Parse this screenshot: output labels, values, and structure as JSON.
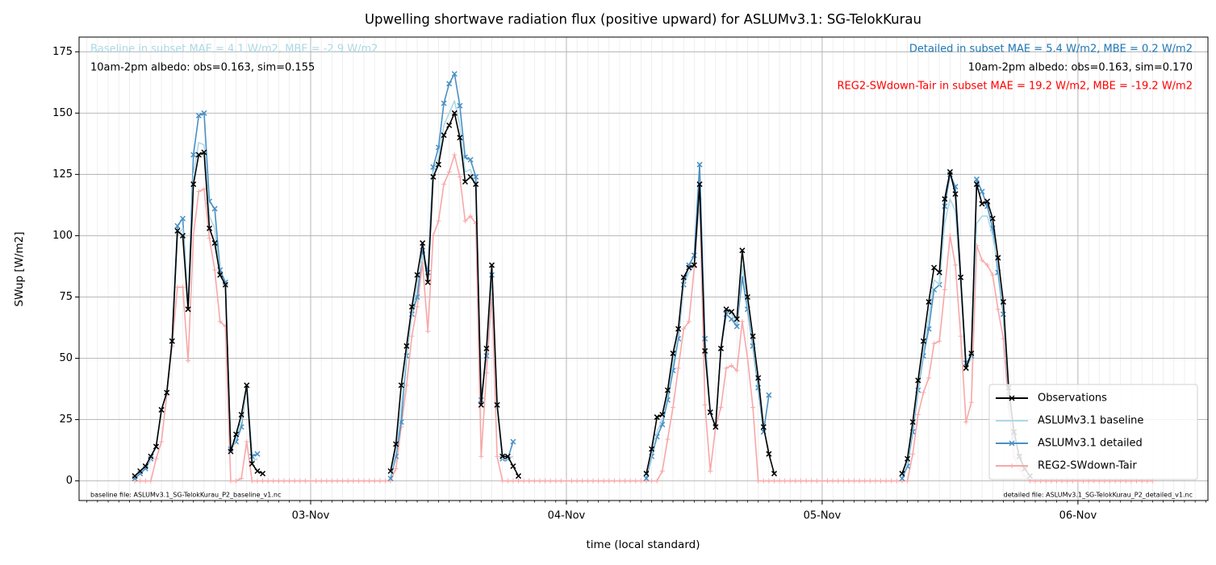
{
  "chart_data": {
    "type": "line",
    "title": "Upwelling shortwave radiation flux (positive upward) for ASLUMv3.1: SG-TelokKurau",
    "x_label": "time (local standard)",
    "y_label": "SWup [W/m2]",
    "xlim": [
      2.27,
      108.2
    ],
    "ylim": [
      -8,
      181
    ],
    "xticks": [
      {
        "value": 24,
        "label": "03-Nov"
      },
      {
        "value": 48,
        "label": "04-Nov"
      },
      {
        "value": 72,
        "label": "05-Nov"
      },
      {
        "value": 96,
        "label": "06-Nov"
      }
    ],
    "yticks": [
      0,
      25,
      50,
      75,
      100,
      125,
      150,
      175
    ],
    "grid": true,
    "legend": "lower right",
    "annotations": [
      {
        "text": "Baseline in subset MAE = 4.1 W/m2, MBE = -2.9 W/m2",
        "color": "#add8e6"
      },
      {
        "text": "10am-2pm albedo: obs=0.163, sim=0.155",
        "color": "#000000"
      },
      {
        "text": "Detailed in subset MAE = 5.4 W/m2, MBE = 0.2 W/m2",
        "color": "#1f77b4"
      },
      {
        "text": "10am-2pm albedo: obs=0.163, sim=0.170",
        "color": "#000000"
      },
      {
        "text": "REG2-SWdown-Tair in subset MAE = 19.2 W/m2, MBE = -19.2 W/m2",
        "color": "#ff0000"
      },
      {
        "text": "baseline file: ASLUMv3.1_SG-TelokKurau_P2_baseline_v1.nc",
        "color": "#000000"
      },
      {
        "text": "detailed file: ASLUMv3.1_SG-TelokKurau_P2_detailed_v1.nc",
        "color": "#000000"
      }
    ],
    "x": [
      7.5,
      8,
      8.5,
      9,
      9.5,
      10,
      10.5,
      11,
      11.5,
      12,
      12.5,
      13,
      13.5,
      14,
      14.5,
      15,
      15.5,
      16,
      16.5,
      17,
      17.5,
      18,
      18.5,
      19,
      19.5,
      20,
      20.5,
      21,
      21.5,
      22,
      22.5,
      23,
      23.5,
      24,
      24.5,
      25,
      25.5,
      26,
      26.5,
      27,
      27.5,
      28,
      28.5,
      29,
      29.5,
      30,
      30.5,
      31,
      31.5,
      32,
      32.5,
      33,
      33.5,
      34,
      34.5,
      35,
      35.5,
      36,
      36.5,
      37,
      37.5,
      38,
      38.5,
      39,
      39.5,
      40,
      40.5,
      41,
      41.5,
      42,
      42.5,
      43,
      43.5,
      44,
      44.5,
      45,
      45.5,
      46,
      46.5,
      47,
      47.5,
      48,
      48.5,
      49,
      49.5,
      50,
      50.5,
      51,
      51.5,
      52,
      52.5,
      53,
      53.5,
      54,
      54.5,
      55,
      55.5,
      56,
      56.5,
      57,
      57.5,
      58,
      58.5,
      59,
      59.5,
      60,
      60.5,
      61,
      61.5,
      62,
      62.5,
      63,
      63.5,
      64,
      64.5,
      65,
      65.5,
      66,
      66.5,
      67,
      67.5,
      68,
      68.5,
      69,
      69.5,
      70,
      70.5,
      71,
      71.5,
      72,
      72.5,
      73,
      73.5,
      74,
      74.5,
      75,
      75.5,
      76,
      76.5,
      77,
      77.5,
      78,
      78.5,
      79,
      79.5,
      80,
      80.5,
      81,
      81.5,
      82,
      82.5,
      83,
      83.5,
      84,
      84.5,
      85,
      85.5,
      86,
      86.5,
      87,
      87.5,
      88,
      88.5,
      89,
      89.5,
      90,
      90.5,
      91,
      91.5,
      92,
      92.5,
      93,
      93.5,
      94,
      94.5,
      95,
      95.5,
      96,
      96.5,
      97,
      97.5,
      98,
      98.5,
      99,
      99.5,
      100,
      100.5,
      101,
      101.5,
      102,
      102.5,
      103
    ],
    "series": [
      {
        "name": "Observations",
        "color": "#000000",
        "marker": "x",
        "values": [
          2,
          4,
          6,
          10,
          14,
          29,
          36,
          57,
          102,
          100,
          70,
          121,
          133,
          134,
          103,
          97,
          84,
          80,
          12,
          19,
          27,
          39,
          7,
          4,
          3,
          null,
          null,
          null,
          null,
          null,
          null,
          null,
          null,
          null,
          null,
          null,
          null,
          null,
          null,
          null,
          null,
          null,
          null,
          null,
          null,
          null,
          null,
          null,
          4,
          15,
          39,
          55,
          71,
          84,
          97,
          81,
          124,
          129,
          141,
          145,
          150,
          140,
          122,
          124,
          121,
          31,
          54,
          88,
          31,
          10,
          10,
          6,
          2,
          null,
          null,
          null,
          null,
          null,
          null,
          null,
          null,
          null,
          null,
          null,
          null,
          null,
          null,
          null,
          null,
          null,
          null,
          null,
          null,
          null,
          null,
          null,
          3,
          13,
          26,
          27,
          37,
          52,
          62,
          83,
          87,
          88,
          121,
          53,
          28,
          22,
          54,
          70,
          69,
          66,
          94,
          75,
          59,
          42,
          22,
          11,
          3,
          null,
          null,
          null,
          null,
          null,
          null,
          null,
          null,
          null,
          null,
          null,
          null,
          null,
          null,
          null,
          null,
          null,
          null,
          null,
          null,
          null,
          null,
          null,
          3,
          9,
          24,
          41,
          57,
          73,
          87,
          85,
          115,
          126,
          117,
          83,
          46,
          52,
          121,
          113,
          114,
          107,
          91,
          73,
          38,
          20,
          10,
          5,
          2,
          null,
          null,
          null,
          null,
          null,
          null,
          null,
          null,
          null,
          null,
          null,
          null,
          null,
          null,
          null,
          null,
          null,
          null,
          null,
          null,
          null,
          null,
          null
        ]
      },
      {
        "name": "ASLUMv3.1 baseline",
        "color": "#add8e6",
        "marker": "none",
        "values": [
          2,
          4,
          6,
          9,
          14,
          29,
          36,
          56,
          100,
          103,
          70,
          125,
          138,
          137,
          108,
          103,
          84,
          80,
          12,
          17,
          24,
          38,
          8,
          9,
          null,
          null,
          null,
          null,
          null,
          null,
          null,
          null,
          null,
          null,
          null,
          null,
          null,
          null,
          null,
          null,
          null,
          null,
          null,
          null,
          null,
          null,
          null,
          null,
          2,
          12,
          30,
          52,
          68,
          80,
          92,
          83,
          126,
          132,
          145,
          150,
          155,
          145,
          126,
          127,
          120,
          32,
          52,
          85,
          30,
          9,
          9,
          10,
          null,
          null,
          null,
          null,
          null,
          null,
          null,
          null,
          null,
          null,
          null,
          null,
          null,
          null,
          null,
          null,
          null,
          null,
          null,
          null,
          null,
          null,
          null,
          null,
          2,
          11,
          20,
          25,
          35,
          48,
          60,
          80,
          85,
          88,
          116,
          55,
          28,
          22,
          54,
          70,
          68,
          64,
          88,
          72,
          57,
          40,
          22,
          12,
          null,
          null,
          null,
          null,
          null,
          null,
          null,
          null,
          null,
          null,
          null,
          null,
          null,
          null,
          null,
          null,
          null,
          null,
          null,
          null,
          null,
          null,
          null,
          null,
          2,
          7,
          22,
          38,
          53,
          67,
          82,
          80,
          105,
          115,
          110,
          80,
          46,
          50,
          105,
          108,
          108,
          100,
          88,
          70,
          36,
          18,
          9,
          4,
          null,
          null,
          null,
          null,
          null,
          null,
          null,
          null,
          null,
          null,
          null,
          null,
          null,
          null,
          null,
          null,
          null,
          null,
          null,
          null,
          null,
          null,
          null,
          null
        ]
      },
      {
        "name": "ASLUMv3.1 detailed",
        "color": "#4a90c4",
        "marker": "x",
        "values": [
          1,
          3,
          5,
          9,
          14,
          29,
          36,
          57,
          104,
          107,
          70,
          133,
          149,
          150,
          114,
          111,
          86,
          81,
          13,
          16,
          22,
          39,
          10,
          11,
          null,
          null,
          null,
          null,
          null,
          null,
          null,
          null,
          null,
          null,
          null,
          null,
          null,
          null,
          null,
          null,
          null,
          null,
          null,
          null,
          null,
          null,
          null,
          null,
          1,
          10,
          24,
          51,
          68,
          75,
          94,
          85,
          128,
          136,
          154,
          162,
          166,
          153,
          132,
          131,
          124,
          33,
          51,
          84,
          31,
          9,
          9,
          16,
          null,
          null,
          null,
          null,
          null,
          null,
          null,
          null,
          null,
          null,
          null,
          null,
          null,
          null,
          null,
          null,
          null,
          null,
          null,
          null,
          null,
          null,
          null,
          null,
          1,
          10,
          18,
          23,
          33,
          45,
          58,
          80,
          88,
          92,
          129,
          58,
          28,
          22,
          54,
          68,
          66,
          63,
          83,
          70,
          55,
          38,
          20,
          35,
          null,
          null,
          null,
          null,
          null,
          null,
          null,
          null,
          null,
          null,
          null,
          null,
          null,
          null,
          null,
          null,
          null,
          null,
          null,
          null,
          null,
          null,
          null,
          null,
          1,
          6,
          20,
          37,
          51,
          62,
          78,
          80,
          112,
          125,
          120,
          83,
          48,
          51,
          123,
          118,
          112,
          103,
          85,
          68,
          35,
          18,
          10,
          5,
          null,
          null,
          null,
          null,
          null,
          null,
          null,
          null,
          null,
          null,
          null,
          null,
          null,
          null,
          null,
          null,
          null,
          null,
          null,
          null,
          null,
          null,
          null,
          null
        ]
      },
      {
        "name": "REG2-SWdown-Tair",
        "color": "#f7a8a8",
        "marker": "+",
        "values": [
          0,
          0,
          0,
          0,
          9,
          16,
          35,
          55,
          79,
          79,
          49,
          100,
          118,
          119,
          99,
          86,
          65,
          63,
          0,
          0,
          1,
          16,
          0,
          0,
          0,
          0,
          0,
          0,
          0,
          0,
          0,
          0,
          0,
          0,
          0,
          0,
          0,
          0,
          0,
          0,
          0,
          0,
          0,
          0,
          0,
          0,
          0,
          0,
          0,
          5,
          22,
          39,
          59,
          71,
          89,
          61,
          100,
          106,
          121,
          126,
          133,
          124,
          106,
          108,
          105,
          10,
          44,
          76,
          10,
          0,
          0,
          0,
          0,
          0,
          0,
          0,
          0,
          0,
          0,
          0,
          0,
          0,
          0,
          0,
          0,
          0,
          0,
          0,
          0,
          0,
          0,
          0,
          0,
          0,
          0,
          0,
          0,
          0,
          0,
          4,
          17,
          30,
          46,
          62,
          65,
          87,
          115,
          31,
          4,
          22,
          30,
          46,
          47,
          45,
          65,
          50,
          30,
          0,
          0,
          0,
          0,
          0,
          0,
          0,
          0,
          0,
          0,
          0,
          0,
          0,
          0,
          0,
          0,
          0,
          0,
          0,
          0,
          0,
          0,
          0,
          0,
          0,
          0,
          0,
          0,
          0,
          11,
          27,
          36,
          42,
          56,
          57,
          78,
          100,
          88,
          59,
          24,
          32,
          96,
          90,
          88,
          84,
          70,
          58,
          30,
          10,
          5,
          2,
          0,
          0,
          0,
          0,
          0,
          0,
          0,
          0,
          0,
          0,
          0,
          0,
          0,
          0,
          0,
          0,
          0,
          0,
          0,
          0,
          0,
          0,
          0,
          0
        ]
      }
    ]
  }
}
